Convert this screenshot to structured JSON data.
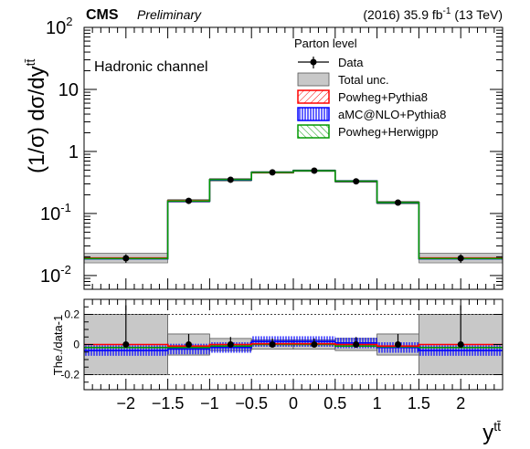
{
  "header": {
    "experiment": "CMS",
    "status": "Preliminary",
    "lumi_prefix": "(2016) 35.9 fb",
    "lumi_sup": "-1",
    "lumi_suffix": " (13 TeV)"
  },
  "chart_data": {
    "type": "histogram",
    "bin_edges": [
      -2.5,
      -1.5,
      -1.0,
      -0.5,
      0.0,
      0.5,
      1.0,
      1.5,
      2.5
    ],
    "annotation": "Hadronic channel",
    "legend_title": "Parton level",
    "legend_position": "top-right",
    "legend": [
      {
        "key": "data",
        "label": "Data"
      },
      {
        "key": "unc",
        "label": "Total unc."
      },
      {
        "key": "powheg_pythia8",
        "label": "Powheg+Pythia8",
        "color": "#ff0000"
      },
      {
        "key": "amcnlo_pythia8",
        "label": "aMC@NLO+Pythia8",
        "color": "#0000ff"
      },
      {
        "key": "powheg_herwigpp",
        "label": "Powheg+Herwigpp",
        "color": "#009900"
      }
    ],
    "upper_panel": {
      "ylabel": "(1/σ) dσ/dy",
      "ylabel_sup": "tt̄",
      "yscale": "log",
      "ylim": [
        0.006,
        100
      ],
      "yticks": [
        {
          "base": "10",
          "exp": "-2",
          "value": 0.01
        },
        {
          "base": "10",
          "exp": "-1",
          "value": 0.1
        },
        {
          "base": "1",
          "exp": "",
          "value": 1
        },
        {
          "base": "10",
          "exp": "",
          "value": 10
        },
        {
          "base": "10",
          "exp": "2",
          "value": 100
        }
      ],
      "data": {
        "x": [
          -2.0,
          -1.25,
          -0.75,
          -0.25,
          0.25,
          0.75,
          1.25,
          2.0
        ],
        "y": [
          0.019,
          0.16,
          0.35,
          0.46,
          0.49,
          0.33,
          0.15,
          0.019
        ],
        "yerr": [
          0.003,
          0.01,
          0.02,
          0.02,
          0.02,
          0.02,
          0.01,
          0.003
        ]
      },
      "total_unc_band": {
        "low": [
          0.016,
          0.152,
          0.334,
          0.445,
          0.475,
          0.318,
          0.143,
          0.016
        ],
        "high": [
          0.023,
          0.168,
          0.366,
          0.475,
          0.505,
          0.342,
          0.157,
          0.023
        ]
      },
      "powheg_pythia8": [
        0.0192,
        0.161,
        0.349,
        0.458,
        0.488,
        0.331,
        0.151,
        0.0192
      ],
      "amcnlo_pythia8": [
        0.0186,
        0.158,
        0.347,
        0.462,
        0.492,
        0.333,
        0.149,
        0.0186
      ],
      "powheg_herwigpp": [
        0.0188,
        0.159,
        0.351,
        0.46,
        0.49,
        0.332,
        0.15,
        0.0188
      ]
    },
    "lower_panel": {
      "ylabel": "The./data-1",
      "ylim": [
        -0.3,
        0.3
      ],
      "yticks": [
        -0.2,
        0,
        0.2
      ],
      "reference_lines": [
        0.2,
        -0.2
      ],
      "data": {
        "x": [
          -2.0,
          -1.25,
          -0.75,
          -0.25,
          0.25,
          0.75,
          1.25,
          2.0
        ],
        "y": [
          0,
          0,
          0,
          0,
          0,
          0,
          0,
          0
        ],
        "yerr": [
          0.26,
          0.07,
          0.05,
          0.04,
          0.04,
          0.05,
          0.07,
          0.26
        ]
      },
      "total_unc_band": [
        0.2,
        0.07,
        0.04,
        0.03,
        0.03,
        0.04,
        0.07,
        0.2
      ],
      "powheg_pythia8": [
        0.0,
        -0.01,
        0.0,
        0.005,
        0.005,
        0.0,
        -0.01,
        0.0
      ],
      "amcnlo_pythia8": [
        -0.04,
        -0.03,
        -0.02,
        0.02,
        0.02,
        0.01,
        -0.02,
        -0.04
      ],
      "powheg_herwigpp": [
        -0.02,
        -0.02,
        -0.01,
        0.0,
        0.0,
        -0.01,
        -0.015,
        -0.02
      ]
    },
    "xlabel": "y",
    "xlabel_sup": "tt̄",
    "xlim": [
      -2.5,
      2.5
    ],
    "xticks": [
      -2,
      -1.5,
      -1,
      -0.5,
      0,
      0.5,
      1,
      1.5,
      2
    ],
    "xtick_labels": [
      "−2",
      "−1.5",
      "−1",
      "−0.5",
      "0",
      "0.5",
      "1",
      "1.5",
      "2"
    ]
  }
}
